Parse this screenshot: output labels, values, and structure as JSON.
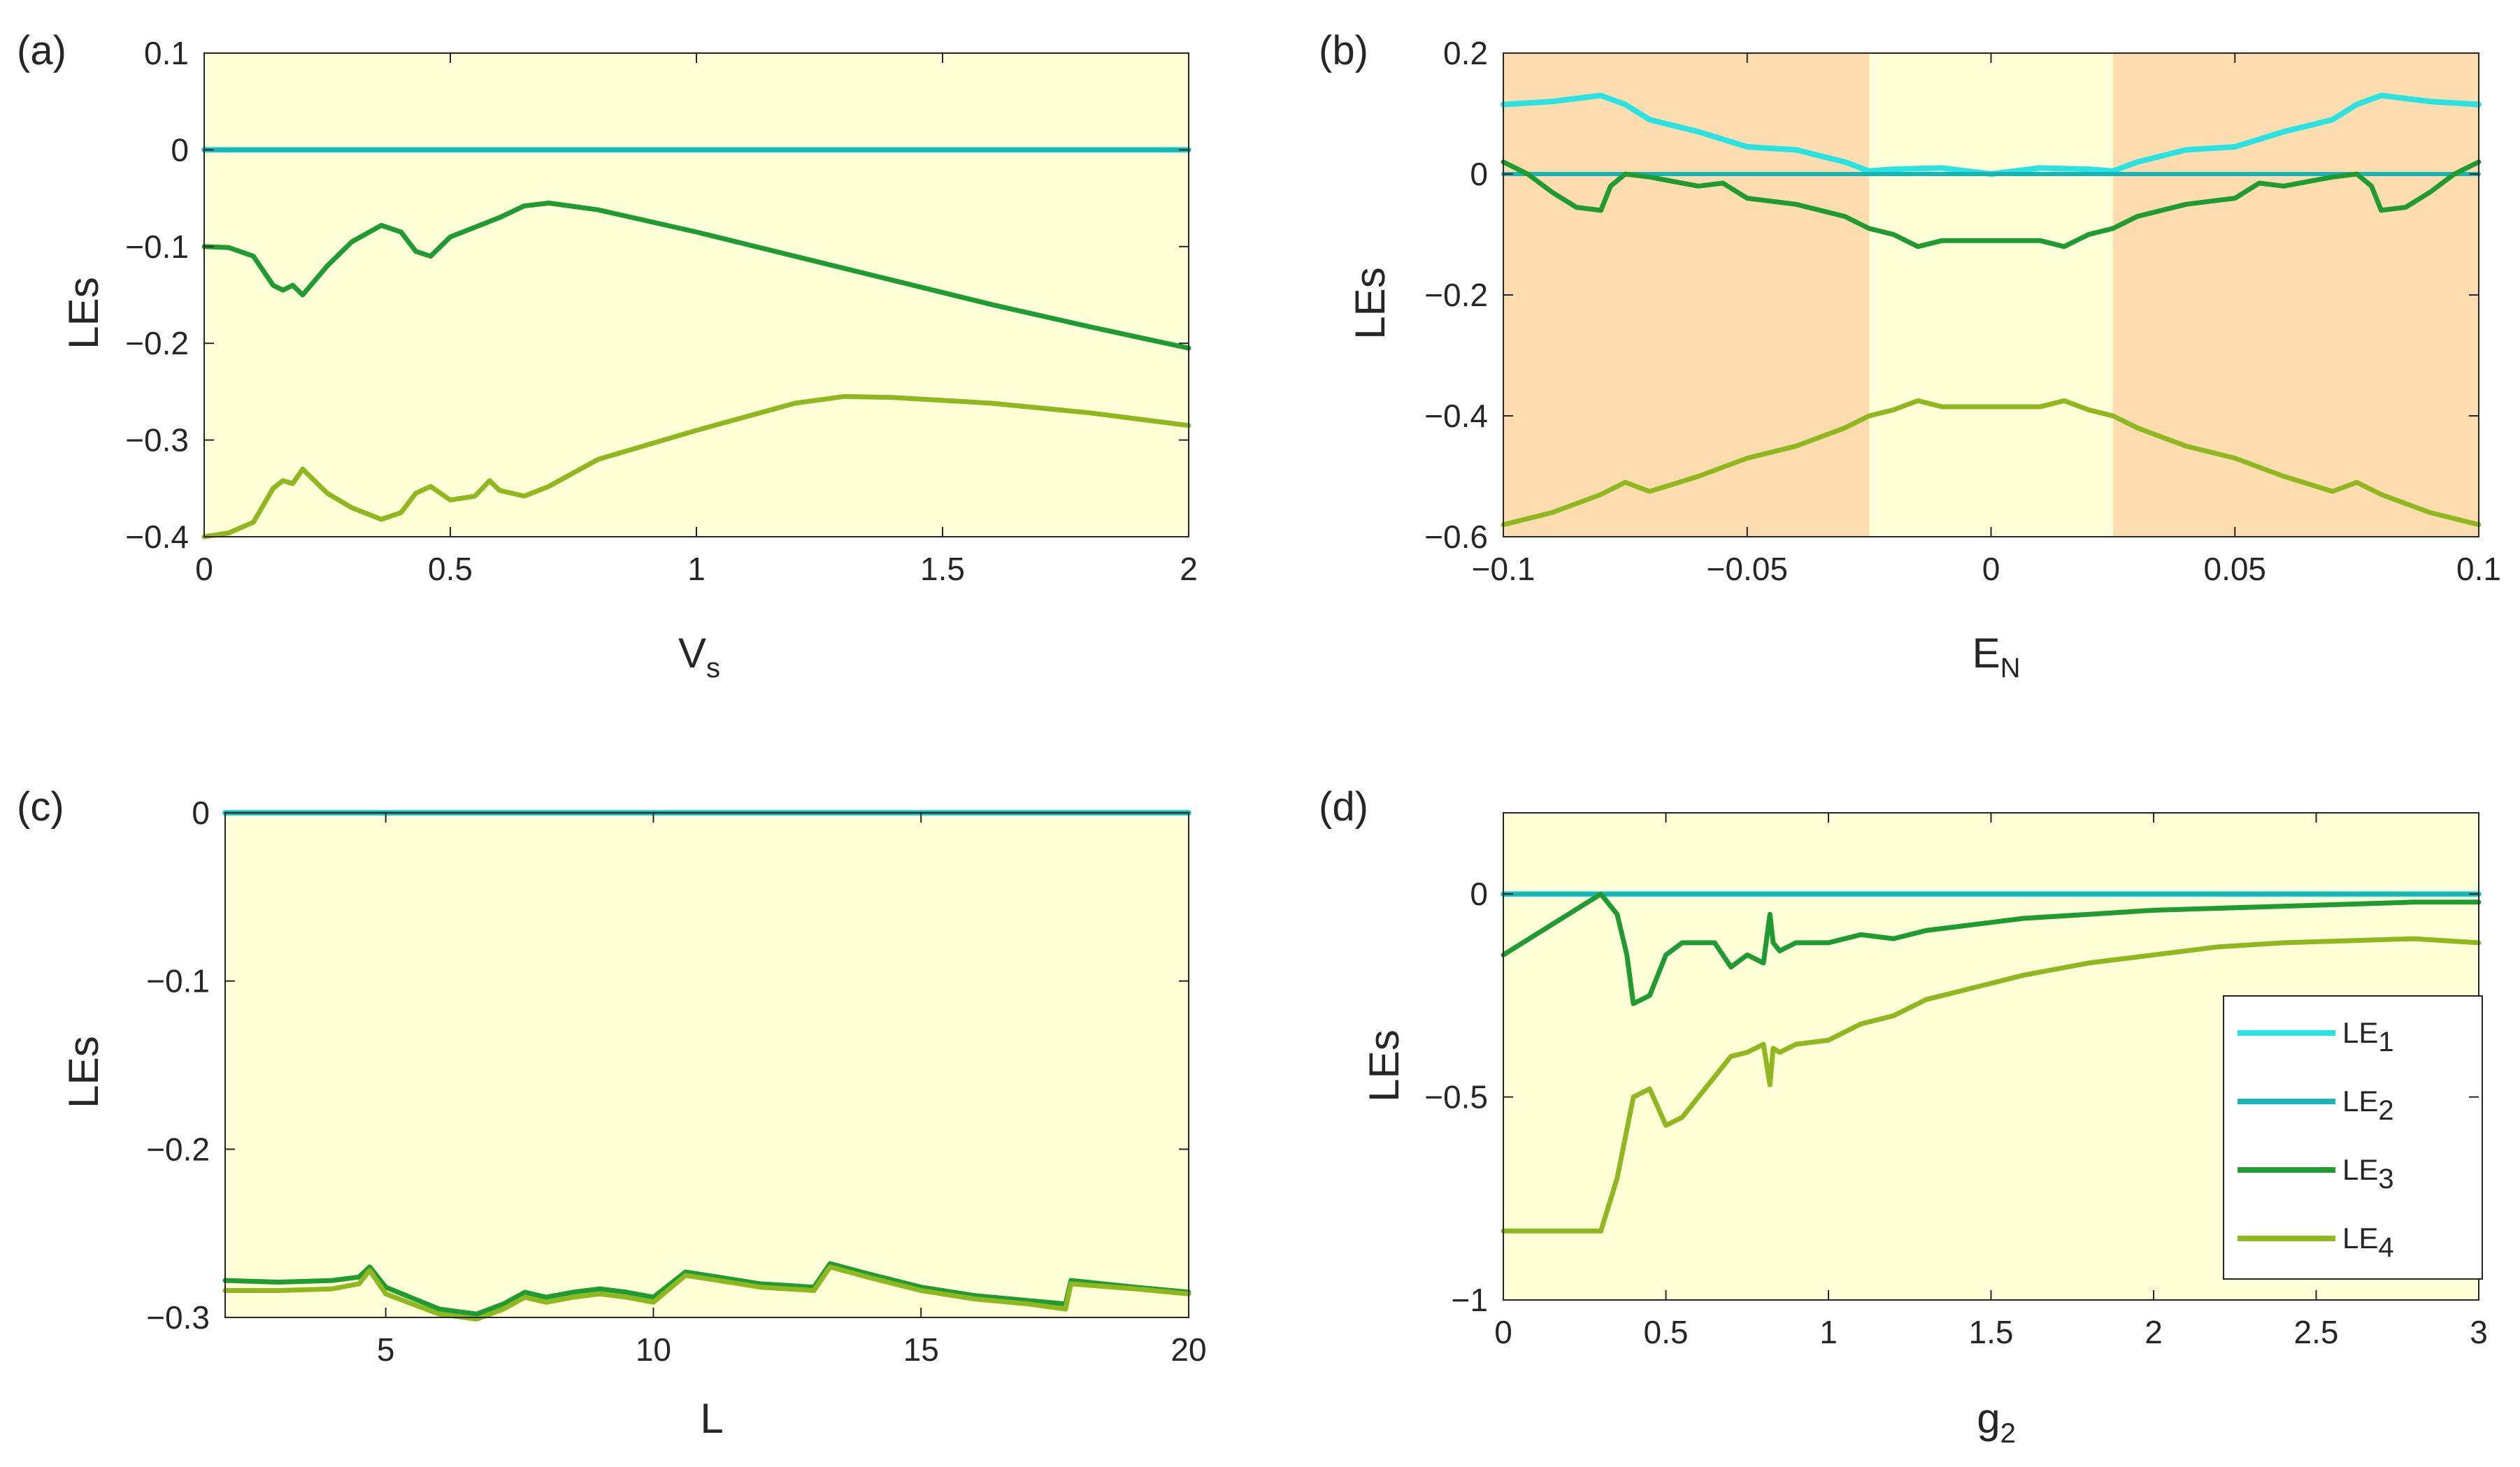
{
  "colors": {
    "bg_yellow": "#ffffd8",
    "bg_orange": "#fddcb0",
    "le1": "#29e3e3",
    "le2": "#1ab3b3",
    "le3": "#1e9c32",
    "le4": "#8fb81e",
    "axis": "#262626"
  },
  "legend": [
    {
      "main": "LE",
      "sub": "1"
    },
    {
      "main": "LE",
      "sub": "2"
    },
    {
      "main": "LE",
      "sub": "3"
    },
    {
      "main": "LE",
      "sub": "4"
    }
  ],
  "chart_data": [
    {
      "panel": "(a)",
      "type": "line",
      "xlabel": {
        "main": "V",
        "sub": "s"
      },
      "ylabel": "LEs",
      "xlim": [
        0,
        2
      ],
      "ylim": [
        -0.4,
        0.1
      ],
      "xticks": [
        0,
        0.5,
        1,
        1.5,
        2
      ],
      "xtick_labels": [
        "0",
        "0.5",
        "1",
        "1.5",
        "2"
      ],
      "yticks": [
        0.1,
        0,
        -0.1,
        -0.2,
        -0.3,
        -0.4
      ],
      "ytick_labels": [
        "0.1",
        "0",
        "−0.1",
        "−0.2",
        "−0.3",
        "−0.4"
      ],
      "series": [
        {
          "name": "LE1",
          "x": [
            0,
            2
          ],
          "y": [
            0,
            0
          ]
        },
        {
          "name": "LE2",
          "x": [
            0,
            2
          ],
          "y": [
            0,
            0
          ]
        },
        {
          "name": "LE3",
          "x": [
            0,
            0.05,
            0.1,
            0.14,
            0.16,
            0.18,
            0.2,
            0.25,
            0.3,
            0.36,
            0.4,
            0.43,
            0.46,
            0.5,
            0.55,
            0.6,
            0.65,
            0.7,
            0.8,
            1.0,
            1.2,
            1.4,
            1.6,
            1.8,
            2.0
          ],
          "y": [
            -0.1,
            -0.101,
            -0.11,
            -0.14,
            -0.145,
            -0.14,
            -0.15,
            -0.12,
            -0.095,
            -0.078,
            -0.085,
            -0.105,
            -0.11,
            -0.09,
            -0.08,
            -0.07,
            -0.058,
            -0.055,
            -0.062,
            -0.085,
            -0.11,
            -0.135,
            -0.16,
            -0.183,
            -0.205
          ]
        },
        {
          "name": "LE4",
          "x": [
            0,
            0.05,
            0.1,
            0.14,
            0.16,
            0.18,
            0.2,
            0.25,
            0.3,
            0.36,
            0.4,
            0.43,
            0.46,
            0.5,
            0.55,
            0.58,
            0.6,
            0.65,
            0.7,
            0.8,
            1.0,
            1.2,
            1.3,
            1.4,
            1.6,
            1.8,
            2.0
          ],
          "y": [
            -0.4,
            -0.396,
            -0.385,
            -0.35,
            -0.342,
            -0.345,
            -0.33,
            -0.355,
            -0.37,
            -0.382,
            -0.375,
            -0.355,
            -0.348,
            -0.362,
            -0.358,
            -0.342,
            -0.352,
            -0.358,
            -0.348,
            -0.32,
            -0.29,
            -0.262,
            -0.255,
            -0.256,
            -0.262,
            -0.272,
            -0.285
          ]
        }
      ]
    },
    {
      "panel": "(b)",
      "type": "line",
      "xlabel": {
        "main": "E",
        "sub": "N"
      },
      "ylabel": "LEs",
      "xlim": [
        -0.1,
        0.1
      ],
      "ylim": [
        -0.6,
        0.2
      ],
      "shaded_regions": [
        [
          -0.1,
          -0.025
        ],
        [
          0.025,
          0.1
        ]
      ],
      "xticks": [
        -0.1,
        -0.05,
        0,
        0.05,
        0.1
      ],
      "xtick_labels": [
        "−0.1",
        "−0.05",
        "0",
        "0.05",
        "0.1"
      ],
      "yticks": [
        0.2,
        0,
        -0.2,
        -0.4,
        -0.6
      ],
      "ytick_labels": [
        "0.2",
        "0",
        "−0.2",
        "−0.4",
        "−0.6"
      ],
      "series": [
        {
          "name": "LE1",
          "x": [
            -0.1,
            -0.09,
            -0.085,
            -0.08,
            -0.075,
            -0.07,
            -0.06,
            -0.05,
            -0.04,
            -0.03,
            -0.025,
            -0.02,
            -0.01,
            0,
            0.01,
            0.02,
            0.025,
            0.03,
            0.04,
            0.05,
            0.06,
            0.07,
            0.075,
            0.08,
            0.085,
            0.09,
            0.1
          ],
          "y": [
            0.115,
            0.12,
            0.125,
            0.13,
            0.115,
            0.09,
            0.07,
            0.045,
            0.04,
            0.02,
            0.005,
            0.008,
            0.01,
            0.0,
            0.01,
            0.008,
            0.005,
            0.02,
            0.04,
            0.045,
            0.07,
            0.09,
            0.115,
            0.13,
            0.125,
            0.12,
            0.115
          ]
        },
        {
          "name": "LE2",
          "x": [
            -0.1,
            0.1
          ],
          "y": [
            0,
            0
          ]
        },
        {
          "name": "LE3",
          "x": [
            -0.1,
            -0.095,
            -0.09,
            -0.085,
            -0.08,
            -0.078,
            -0.075,
            -0.07,
            -0.06,
            -0.055,
            -0.05,
            -0.04,
            -0.03,
            -0.025,
            -0.02,
            -0.015,
            -0.01,
            0,
            0.01,
            0.015,
            0.02,
            0.025,
            0.03,
            0.04,
            0.05,
            0.055,
            0.06,
            0.07,
            0.075,
            0.078,
            0.08,
            0.085,
            0.09,
            0.095,
            0.1
          ],
          "y": [
            0.02,
            0.0,
            -0.03,
            -0.055,
            -0.06,
            -0.02,
            0.0,
            -0.005,
            -0.02,
            -0.015,
            -0.04,
            -0.05,
            -0.07,
            -0.09,
            -0.1,
            -0.12,
            -0.11,
            -0.11,
            -0.11,
            -0.12,
            -0.1,
            -0.09,
            -0.07,
            -0.05,
            -0.04,
            -0.015,
            -0.02,
            -0.005,
            0.0,
            -0.02,
            -0.06,
            -0.055,
            -0.03,
            0.0,
            0.02
          ]
        },
        {
          "name": "LE4",
          "x": [
            -0.1,
            -0.09,
            -0.08,
            -0.075,
            -0.07,
            -0.06,
            -0.05,
            -0.04,
            -0.03,
            -0.025,
            -0.02,
            -0.015,
            -0.01,
            0,
            0.01,
            0.015,
            0.02,
            0.025,
            0.03,
            0.04,
            0.05,
            0.06,
            0.07,
            0.075,
            0.08,
            0.09,
            0.1
          ],
          "y": [
            -0.58,
            -0.56,
            -0.53,
            -0.51,
            -0.525,
            -0.5,
            -0.47,
            -0.45,
            -0.42,
            -0.4,
            -0.39,
            -0.375,
            -0.385,
            -0.385,
            -0.385,
            -0.375,
            -0.39,
            -0.4,
            -0.42,
            -0.45,
            -0.47,
            -0.5,
            -0.525,
            -0.51,
            -0.53,
            -0.56,
            -0.58
          ]
        }
      ]
    },
    {
      "panel": "(c)",
      "type": "line",
      "xlabel": {
        "main": "L",
        "sub": ""
      },
      "ylabel": "LEs",
      "xlim": [
        2,
        20
      ],
      "ylim": [
        -0.3,
        0
      ],
      "xticks": [
        5,
        10,
        15,
        20
      ],
      "xtick_labels": [
        "5",
        "10",
        "15",
        "20"
      ],
      "yticks": [
        0,
        -0.1,
        -0.2,
        -0.3
      ],
      "ytick_labels": [
        "0",
        "−0.1",
        "−0.2",
        "−0.3"
      ],
      "series": [
        {
          "name": "LE1",
          "x": [
            2,
            20
          ],
          "y": [
            0,
            0
          ]
        },
        {
          "name": "LE2",
          "x": [
            2,
            20
          ],
          "y": [
            0,
            0
          ]
        },
        {
          "name": "LE3",
          "x": [
            2,
            3,
            4,
            4.5,
            4.7,
            5,
            6,
            6.7,
            7.2,
            7.6,
            8,
            8.5,
            9,
            9.5,
            10,
            10.6,
            11,
            12,
            13,
            13.3,
            14,
            15,
            16,
            17,
            17.7,
            17.8,
            19,
            20
          ],
          "y": [
            -0.278,
            -0.279,
            -0.278,
            -0.276,
            -0.27,
            -0.282,
            -0.295,
            -0.298,
            -0.292,
            -0.285,
            -0.288,
            -0.285,
            -0.283,
            -0.285,
            -0.288,
            -0.273,
            -0.275,
            -0.28,
            -0.282,
            -0.268,
            -0.274,
            -0.282,
            -0.287,
            -0.29,
            -0.292,
            -0.278,
            -0.282,
            -0.285
          ]
        },
        {
          "name": "LE4",
          "x": [
            2,
            3,
            4,
            4.5,
            4.7,
            5,
            6,
            6.7,
            7.2,
            7.6,
            8,
            8.5,
            9,
            9.5,
            10,
            10.6,
            11,
            12,
            13,
            13.3,
            14,
            15,
            16,
            17,
            17.7,
            17.8,
            19,
            20
          ],
          "y": [
            -0.284,
            -0.284,
            -0.283,
            -0.28,
            -0.272,
            -0.286,
            -0.298,
            -0.301,
            -0.295,
            -0.288,
            -0.291,
            -0.288,
            -0.286,
            -0.288,
            -0.291,
            -0.275,
            -0.277,
            -0.282,
            -0.284,
            -0.27,
            -0.276,
            -0.284,
            -0.289,
            -0.292,
            -0.295,
            -0.28,
            -0.283,
            -0.286
          ]
        }
      ]
    },
    {
      "panel": "(d)",
      "type": "line",
      "xlabel": {
        "main": "g",
        "sub": "2"
      },
      "ylabel": "LEs",
      "xlim": [
        0,
        3
      ],
      "ylim": [
        -1,
        0.2
      ],
      "xticks": [
        0,
        0.5,
        1,
        1.5,
        2,
        2.5,
        3
      ],
      "xtick_labels": [
        "0",
        "0.5",
        "1",
        "1.5",
        "2",
        "2.5",
        "3"
      ],
      "yticks": [
        0,
        -0.5,
        -1
      ],
      "ytick_labels": [
        "0",
        "−0.5",
        "−1"
      ],
      "legend_position": "right",
      "series": [
        {
          "name": "LE1",
          "x": [
            0,
            3
          ],
          "y": [
            0,
            0
          ]
        },
        {
          "name": "LE2",
          "x": [
            0,
            3
          ],
          "y": [
            0,
            0
          ]
        },
        {
          "name": "LE3",
          "x": [
            0,
            0.3,
            0.35,
            0.38,
            0.4,
            0.45,
            0.5,
            0.55,
            0.6,
            0.65,
            0.7,
            0.75,
            0.8,
            0.82,
            0.83,
            0.85,
            0.9,
            1.0,
            1.1,
            1.2,
            1.3,
            1.4,
            1.5,
            1.6,
            1.8,
            2.0,
            2.2,
            2.4,
            2.6,
            2.8,
            3.0
          ],
          "y": [
            -0.15,
            0.0,
            -0.05,
            -0.15,
            -0.27,
            -0.25,
            -0.15,
            -0.12,
            -0.12,
            -0.12,
            -0.18,
            -0.15,
            -0.17,
            -0.05,
            -0.12,
            -0.14,
            -0.12,
            -0.12,
            -0.1,
            -0.11,
            -0.09,
            -0.08,
            -0.07,
            -0.06,
            -0.05,
            -0.04,
            -0.035,
            -0.03,
            -0.025,
            -0.02,
            -0.02
          ]
        },
        {
          "name": "LE4",
          "x": [
            0,
            0.3,
            0.35,
            0.4,
            0.45,
            0.5,
            0.55,
            0.6,
            0.65,
            0.7,
            0.75,
            0.8,
            0.82,
            0.83,
            0.85,
            0.9,
            1.0,
            1.1,
            1.2,
            1.3,
            1.4,
            1.5,
            1.6,
            1.8,
            2.0,
            2.2,
            2.4,
            2.6,
            2.8,
            3.0
          ],
          "y": [
            -0.83,
            -0.83,
            -0.7,
            -0.5,
            -0.48,
            -0.57,
            -0.55,
            -0.5,
            -0.45,
            -0.4,
            -0.39,
            -0.37,
            -0.47,
            -0.38,
            -0.39,
            -0.37,
            -0.36,
            -0.32,
            -0.3,
            -0.26,
            -0.24,
            -0.22,
            -0.2,
            -0.17,
            -0.15,
            -0.13,
            -0.12,
            -0.115,
            -0.11,
            -0.12
          ]
        }
      ]
    }
  ]
}
